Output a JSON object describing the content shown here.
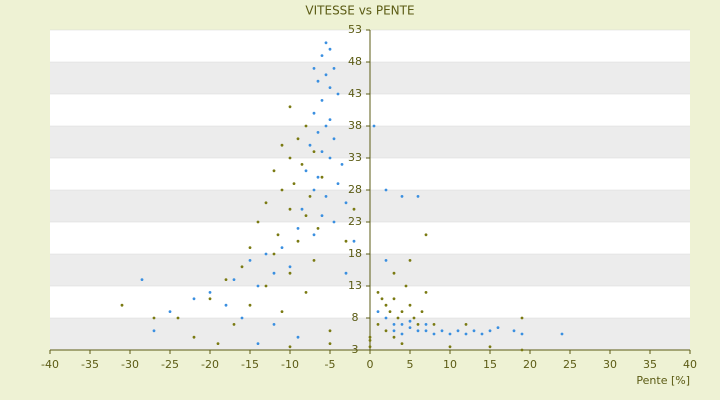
{
  "chart_data": {
    "type": "scatter",
    "title": "VITESSE vs PENTE",
    "x_label": "Pente [%]",
    "xlim": [
      -40,
      40
    ],
    "xticks": [
      -40,
      -35,
      -30,
      -25,
      -20,
      -15,
      -10,
      -5,
      0,
      5,
      10,
      15,
      20,
      25,
      30,
      35,
      40
    ],
    "ylim": [
      3,
      53
    ],
    "yticks": [
      3,
      8,
      13,
      18,
      23,
      28,
      33,
      38,
      43,
      48,
      53
    ],
    "grid": true,
    "series": [
      {
        "color": "#3a8fe0",
        "x": [
          -5.5,
          -5,
          -6,
          -7,
          -4.5,
          -5.5,
          -6.5,
          -5,
          -4,
          -6,
          -7,
          -5,
          -5.5,
          -6.5,
          -4.5,
          -7.5,
          -6,
          -5,
          -3.5,
          -8,
          -6.5,
          -4,
          -7,
          -5.5,
          -3,
          -8.5,
          -6,
          -4.5,
          -9,
          -7,
          -2,
          -11,
          -13,
          -15,
          -10,
          -12,
          -17,
          -14,
          -20,
          -22,
          -18,
          -25,
          -16,
          -12,
          -27,
          -9,
          -14,
          1,
          2,
          3,
          4,
          5,
          6,
          7,
          8,
          9,
          10,
          11,
          12,
          13,
          14,
          15,
          16,
          18,
          19,
          24,
          3,
          5,
          7,
          4,
          2,
          4,
          6,
          0.5,
          2,
          -28.5,
          -3
        ],
        "values": [
          51,
          50,
          49,
          47,
          47,
          46,
          45,
          44,
          43,
          42,
          40,
          39,
          38,
          37,
          36,
          35,
          34,
          33,
          32,
          31,
          30,
          29,
          28,
          27,
          26,
          25,
          24,
          23,
          22,
          21,
          20,
          19,
          18,
          17,
          16,
          15,
          14,
          13,
          12,
          11,
          10,
          9,
          8,
          7,
          6,
          5,
          4,
          9,
          8,
          7,
          7,
          6.5,
          6,
          6,
          5.5,
          6,
          5.5,
          6,
          5.5,
          6,
          5.5,
          6,
          6.5,
          6,
          5.5,
          5.5,
          6,
          7.5,
          7,
          5.5,
          28,
          27,
          27,
          38,
          17,
          14,
          15
        ]
      },
      {
        "color": "#7a7a12",
        "x": [
          -10,
          -8,
          -9,
          -11,
          -7,
          -10,
          -8.5,
          -12,
          -6,
          -9.5,
          -11,
          -7.5,
          -13,
          -10,
          -8,
          -14,
          -6.5,
          -11.5,
          -9,
          -15,
          -12,
          -7,
          -16,
          -10,
          -18,
          -13,
          -8,
          -20,
          -15,
          -11,
          -24,
          -17,
          -5,
          -22,
          -19,
          -10,
          -5,
          -31,
          -27,
          -3,
          -2,
          0,
          0,
          0,
          1,
          1.5,
          2,
          2.5,
          3,
          3.5,
          4,
          4.5,
          5,
          5.5,
          6,
          6.5,
          7,
          8,
          1,
          2,
          3,
          4,
          10,
          15,
          19,
          19,
          12,
          7,
          5,
          3
        ],
        "values": [
          41,
          38,
          36,
          35,
          34,
          33,
          32,
          31,
          30,
          29,
          28,
          27,
          26,
          25,
          24,
          23,
          22,
          21,
          20,
          19,
          18,
          17,
          16,
          15,
          14,
          13,
          12,
          11,
          10,
          9,
          8,
          7,
          6,
          5,
          4,
          3.5,
          4,
          10,
          8,
          20,
          25,
          3.5,
          4.5,
          5,
          12,
          11,
          10,
          9,
          11,
          8,
          9,
          13,
          10,
          8,
          7,
          9,
          12,
          7,
          7,
          6,
          5,
          4,
          3.5,
          3.5,
          3,
          8,
          7,
          21,
          17,
          15
        ]
      }
    ]
  }
}
